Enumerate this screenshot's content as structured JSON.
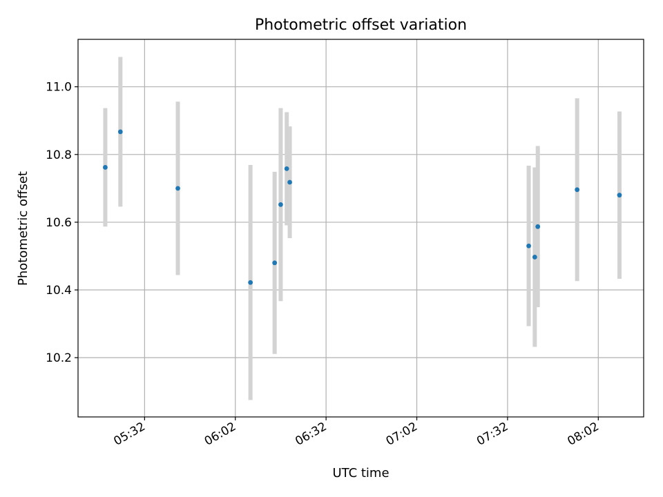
{
  "chart_data": {
    "type": "scatter",
    "title": "Photometric offset variation",
    "xlabel": "UTC time",
    "ylabel": "Photometric offset",
    "grid": true,
    "x_unit": "UTC time (HH:MM)",
    "xlim": [
      "05:10",
      "08:17"
    ],
    "ylim": [
      10.025,
      11.14
    ],
    "x_ticks": [
      "05:32",
      "06:02",
      "06:32",
      "07:02",
      "07:32",
      "08:02"
    ],
    "y_ticks": [
      10.2,
      10.4,
      10.6,
      10.8,
      11.0
    ],
    "y_tick_labels": [
      "10.2",
      "10.4",
      "10.6",
      "10.8",
      "11.0"
    ],
    "colors": {
      "point": "#1f77b4",
      "errorbar": "#d3d3d3"
    },
    "series": [
      {
        "points": [
          {
            "x": "05:19",
            "y": 10.762,
            "err_low": 10.587,
            "err_high": 10.937
          },
          {
            "x": "05:24",
            "y": 10.867,
            "err_low": 10.646,
            "err_high": 11.088
          },
          {
            "x": "05:43",
            "y": 10.7,
            "err_low": 10.444,
            "err_high": 10.956
          },
          {
            "x": "06:07",
            "y": 10.422,
            "err_low": 10.075,
            "err_high": 10.769
          },
          {
            "x": "06:15",
            "y": 10.48,
            "err_low": 10.211,
            "err_high": 10.749
          },
          {
            "x": "06:17",
            "y": 10.652,
            "err_low": 10.367,
            "err_high": 10.937
          },
          {
            "x": "06:19",
            "y": 10.758,
            "err_low": 10.591,
            "err_high": 10.925
          },
          {
            "x": "06:20",
            "y": 10.718,
            "err_low": 10.553,
            "err_high": 10.883
          },
          {
            "x": "07:39",
            "y": 10.53,
            "err_low": 10.293,
            "err_high": 10.767
          },
          {
            "x": "07:41",
            "y": 10.497,
            "err_low": 10.232,
            "err_high": 10.762
          },
          {
            "x": "07:42",
            "y": 10.587,
            "err_low": 10.349,
            "err_high": 10.825
          },
          {
            "x": "07:55",
            "y": 10.696,
            "err_low": 10.426,
            "err_high": 10.966
          },
          {
            "x": "08:09",
            "y": 10.68,
            "err_low": 10.433,
            "err_high": 10.927
          }
        ]
      }
    ]
  }
}
